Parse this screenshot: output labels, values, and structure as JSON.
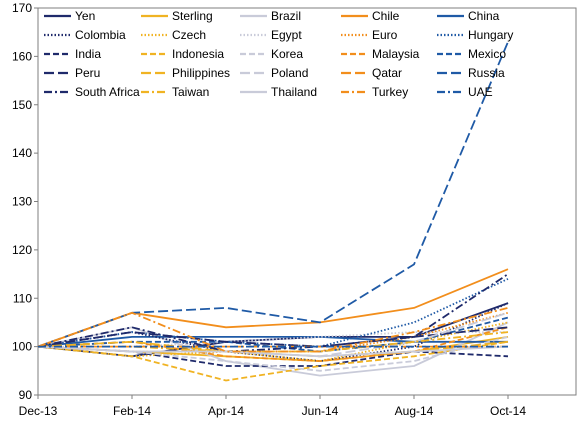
{
  "chart_data": {
    "type": "line",
    "x": [
      "Dec-13",
      "Feb-14",
      "Apr-14",
      "Jun-14",
      "Aug-14",
      "Oct-14"
    ],
    "x_tick_labels": [
      "Dec-13",
      "Feb-14",
      "Apr-14",
      "Jun-14",
      "Aug-14",
      "Oct-14"
    ],
    "y_tick_labels": [
      "90",
      "100",
      "110",
      "120",
      "130",
      "140",
      "150",
      "160",
      "170"
    ],
    "ylim": [
      90,
      170
    ],
    "grid": false,
    "legend_position": "top",
    "series": [
      {
        "name": "Yen",
        "color": "#1f2a6b",
        "dash": "solid",
        "values": [
          100,
          98,
          101,
          102,
          102,
          109
        ]
      },
      {
        "name": "Sterling",
        "color": "#f0b323",
        "dash": "solid",
        "values": [
          100,
          99,
          98,
          97,
          99,
          102
        ]
      },
      {
        "name": "Brazil",
        "color": "#c9cbd9",
        "dash": "solid",
        "values": [
          100,
          104,
          97,
          94,
          96,
          105
        ]
      },
      {
        "name": "Chile",
        "color": "#f28e1c",
        "dash": "solid",
        "values": [
          100,
          107,
          104,
          105,
          108,
          116
        ]
      },
      {
        "name": "China",
        "color": "#1f5aa6",
        "dash": "solid",
        "values": [
          100,
          102,
          102,
          102,
          101,
          101
        ]
      },
      {
        "name": "Colombia",
        "color": "#1f2a6b",
        "dash": "dot",
        "values": [
          100,
          103,
          99,
          97,
          100,
          109
        ]
      },
      {
        "name": "Czech",
        "color": "#f0b323",
        "dash": "dot",
        "values": [
          100,
          98,
          99,
          97,
          101,
          105
        ]
      },
      {
        "name": "Egypt",
        "color": "#c9cbd9",
        "dash": "dot",
        "values": [
          100,
          100,
          101,
          102,
          103,
          103
        ]
      },
      {
        "name": "Euro",
        "color": "#f28e1c",
        "dash": "dot",
        "values": [
          100,
          99,
          99,
          99,
          102,
          107
        ]
      },
      {
        "name": "Hungary",
        "color": "#1f5aa6",
        "dash": "dot",
        "values": [
          100,
          103,
          101,
          100,
          105,
          114
        ]
      },
      {
        "name": "India",
        "color": "#1f2a6b",
        "dash": "dash",
        "values": [
          100,
          99,
          96,
          96,
          99,
          98
        ]
      },
      {
        "name": "Indonesia",
        "color": "#f0b323",
        "dash": "dash",
        "values": [
          100,
          98,
          93,
          96,
          98,
          101
        ]
      },
      {
        "name": "Korea",
        "color": "#c9cbd9",
        "dash": "dash",
        "values": [
          100,
          99,
          97,
          95,
          97,
          102
        ]
      },
      {
        "name": "Malaysia",
        "color": "#f28e1c",
        "dash": "dash",
        "values": [
          100,
          101,
          98,
          97,
          99,
          104
        ]
      },
      {
        "name": "Mexico",
        "color": "#1f5aa6",
        "dash": "dash",
        "values": [
          100,
          101,
          101,
          99,
          101,
          106
        ]
      },
      {
        "name": "Peru",
        "color": "#1f2a6b",
        "dash": "longdash",
        "values": [
          100,
          103,
          101,
          100,
          102,
          104
        ]
      },
      {
        "name": "Philippines",
        "color": "#f0b323",
        "dash": "longdash",
        "values": [
          100,
          101,
          99,
          98,
          99,
          101
        ]
      },
      {
        "name": "Poland",
        "color": "#c9cbd9",
        "dash": "longdash",
        "values": [
          100,
          99,
          99,
          98,
          101,
          107
        ]
      },
      {
        "name": "Qatar",
        "color": "#f28e1c",
        "dash": "longdash",
        "values": [
          100,
          100,
          100,
          100,
          100,
          100
        ]
      },
      {
        "name": "Russia",
        "color": "#1f5aa6",
        "dash": "longdash",
        "values": [
          100,
          107,
          108,
          105,
          117,
          163
        ]
      },
      {
        "name": "South Africa",
        "color": "#1f2a6b",
        "dash": "dashdot",
        "values": [
          100,
          104,
          99,
          100,
          102,
          115
        ]
      },
      {
        "name": "Taiwan",
        "color": "#f0b323",
        "dash": "dashdot",
        "values": [
          100,
          100,
          99,
          99,
          101,
          103
        ]
      },
      {
        "name": "Thailand",
        "color": "#c9cbd9",
        "dash": "solid",
        "values": [
          100,
          99,
          99,
          98,
          99,
          100
        ]
      },
      {
        "name": "Turkey",
        "color": "#f28e1c",
        "dash": "dashdot",
        "values": [
          100,
          107,
          99,
          99,
          103,
          108
        ]
      },
      {
        "name": "UAE",
        "color": "#1f5aa6",
        "dash": "dashdot",
        "values": [
          100,
          100,
          100,
          100,
          100,
          100
        ]
      }
    ]
  }
}
